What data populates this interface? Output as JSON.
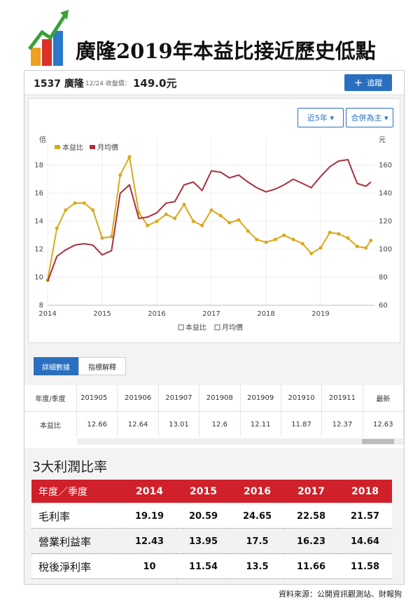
{
  "header": {
    "title": "廣隆2019年本益比接近歷史低點"
  },
  "stock": {
    "code": "1537 廣隆",
    "close_label": "12/24 收盤價：",
    "price": "149.0元",
    "follow": "追蹤",
    "range": "近5年",
    "basis": "合併為主"
  },
  "chart_data": {
    "type": "line",
    "y_label": "倍",
    "y2_label": "元",
    "x": [
      2014,
      2014.17,
      2014.33,
      2014.5,
      2014.67,
      2014.83,
      2015,
      2015.17,
      2015.33,
      2015.5,
      2015.67,
      2015.83,
      2016,
      2016.17,
      2016.33,
      2016.5,
      2016.67,
      2016.83,
      2017,
      2017.17,
      2017.33,
      2017.5,
      2017.67,
      2017.83,
      2018,
      2018.17,
      2018.33,
      2018.5,
      2018.67,
      2018.83,
      2019,
      2019.17,
      2019.33,
      2019.5,
      2019.67,
      2019.83,
      2019.92
    ],
    "series": [
      {
        "name": "本益比",
        "color": "#d9a91a",
        "markers": true,
        "values": [
          9.8,
          13.5,
          14.8,
          15.3,
          15.3,
          14.8,
          12.8,
          12.9,
          17.3,
          18.6,
          14.6,
          13.7,
          14,
          14.5,
          14.2,
          15.2,
          14,
          13.7,
          14.8,
          14.4,
          13.9,
          14.1,
          13.3,
          12.7,
          12.5,
          12.7,
          13,
          12.7,
          12.4,
          11.7,
          12.1,
          13.2,
          13.1,
          12.8,
          12.2,
          12.1,
          12.63
        ]
      },
      {
        "name": "月均價",
        "color": "#a8303f",
        "axis": "y2",
        "values": [
          77,
          95,
          99.5,
          103,
          104,
          103,
          96,
          99,
          140,
          146,
          122,
          123,
          126,
          133,
          134,
          146,
          148,
          142,
          156,
          155,
          151,
          153,
          148,
          144,
          141,
          143,
          146,
          150,
          147,
          144,
          152,
          159,
          163,
          164,
          147,
          145,
          148
        ]
      }
    ],
    "xlim": [
      2014,
      2020
    ],
    "xticks": [
      2014,
      2015,
      2016,
      2017,
      2018,
      2019
    ],
    "ylim": [
      8,
      20
    ],
    "yticks": [
      8,
      10,
      12,
      14,
      16,
      18
    ],
    "y2lim": [
      60,
      180
    ],
    "y2ticks": [
      60,
      80,
      100,
      120,
      140,
      160
    ],
    "grid": true,
    "legend": "upper left"
  },
  "tabs": [
    "詳細數據",
    "指標解釋"
  ],
  "table": {
    "header": [
      "年度/季度",
      "201905",
      "201906",
      "201907",
      "201908",
      "201909",
      "201910",
      "201911",
      "最新"
    ],
    "rows": [
      [
        "本益比",
        12.66,
        12.64,
        13.01,
        12.6,
        12.11,
        11.87,
        12.37,
        12.63
      ]
    ]
  },
  "ratios": {
    "title": "3大利潤比率",
    "header": [
      "年度／季度",
      "2014",
      "2015",
      "2016",
      "2017",
      "2018"
    ],
    "rows": [
      [
        "毛利率",
        19.19,
        20.59,
        24.65,
        22.58,
        21.57
      ],
      [
        "營業利益率",
        12.43,
        13.95,
        17.5,
        16.23,
        14.64
      ],
      [
        "稅後淨利率",
        10,
        11.54,
        13.5,
        11.66,
        11.58
      ]
    ]
  },
  "source": "資料來源：公開資訊觀測站、財報狗"
}
